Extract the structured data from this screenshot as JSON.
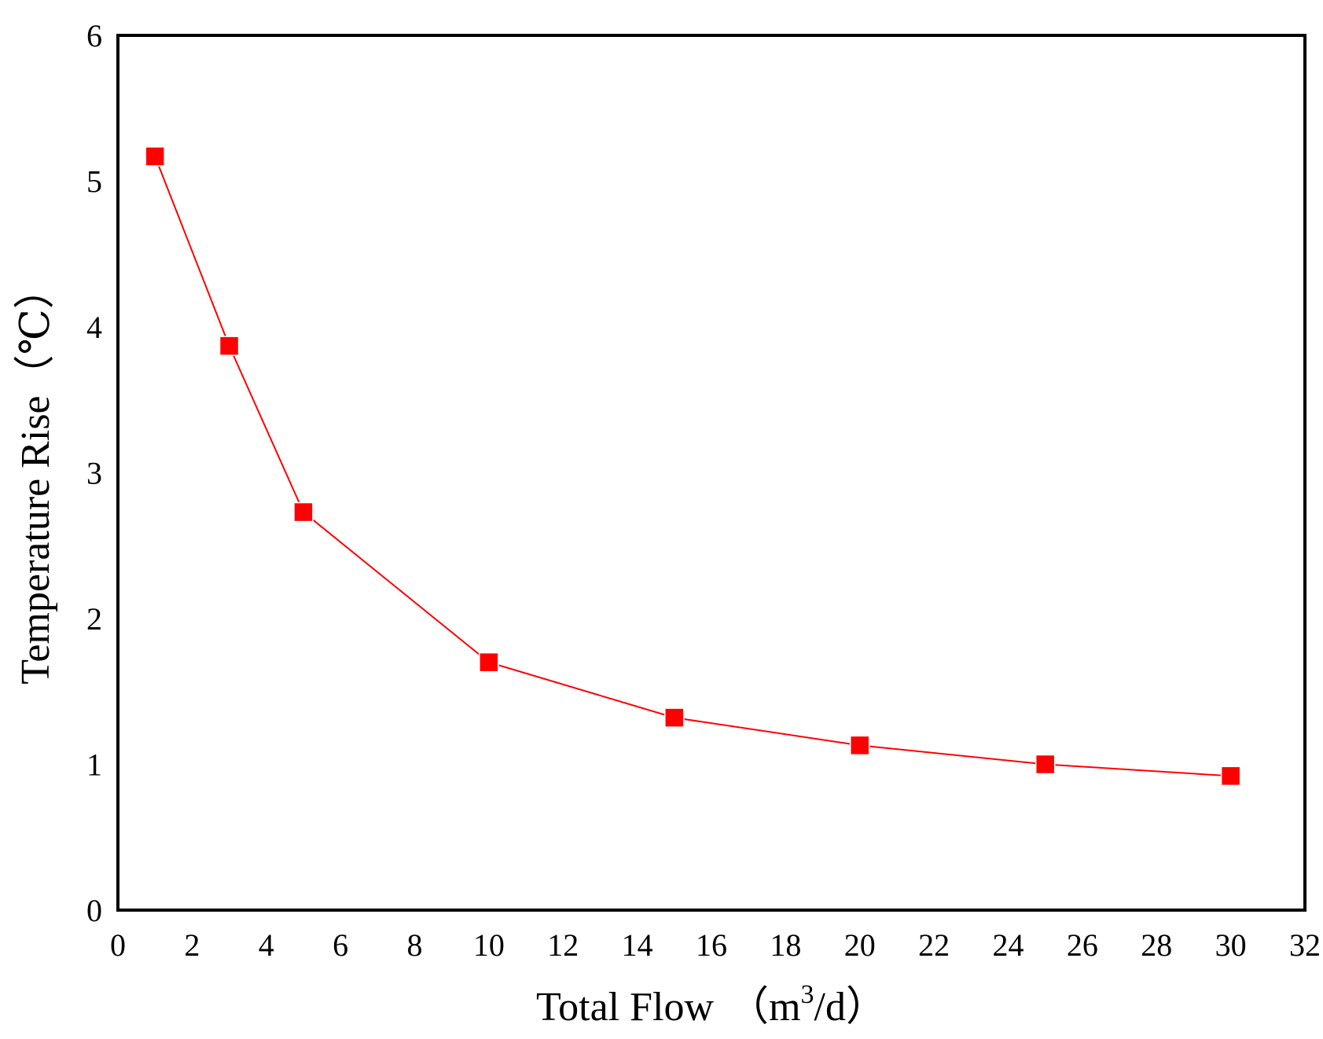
{
  "chart_data": {
    "type": "line",
    "title": "",
    "xlabel": "Total Flow  （m³/d）",
    "xlabel_parts": {
      "main": "Total Flow",
      "paren_open": "（",
      "unit": "m",
      "superscript": "3",
      "unit_suffix": "/d",
      "paren_close": "）"
    },
    "ylabel": "Temperature Rise（℃）",
    "xlim": [
      0,
      32
    ],
    "ylim": [
      0,
      6
    ],
    "xticks": [
      "0",
      "2",
      "4",
      "6",
      "8",
      "10",
      "12",
      "14",
      "16",
      "18",
      "20",
      "22",
      "24",
      "26",
      "28",
      "30",
      "32"
    ],
    "yticks": [
      "0",
      "1",
      "2",
      "3",
      "4",
      "5",
      "6"
    ],
    "grid": false,
    "legend": "none",
    "series": [
      {
        "color": "#ff0000",
        "marker": "square",
        "x": [
          1,
          3,
          5,
          10,
          15,
          20,
          25,
          30
        ],
        "y": [
          5.17,
          3.87,
          2.73,
          1.7,
          1.32,
          1.13,
          1.0,
          0.92
        ]
      }
    ]
  }
}
